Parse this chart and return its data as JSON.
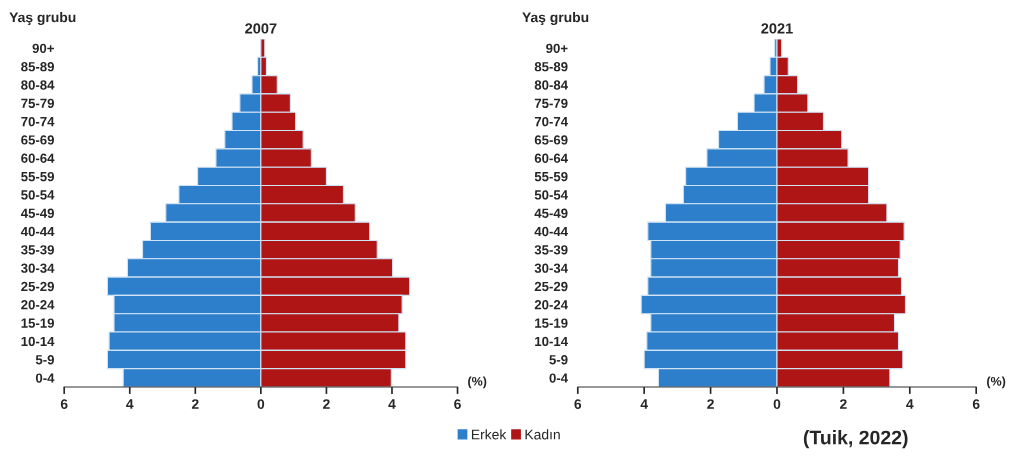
{
  "chart_data": [
    {
      "type": "bar",
      "orientation": "horizontal",
      "stacked": true,
      "title": "2007",
      "ylabel": "Yaş grubu",
      "xlabel": "(%)",
      "categories": [
        "90+",
        "85-89",
        "80-84",
        "75-79",
        "70-74",
        "65-69",
        "60-64",
        "55-59",
        "50-54",
        "45-49",
        "40-44",
        "35-39",
        "30-34",
        "25-29",
        "20-24",
        "15-19",
        "10-14",
        "5-9",
        "0-4"
      ],
      "series": [
        {
          "name": "Erkek",
          "color": "#2e7fcb",
          "values": [
            null,
            -0.1,
            -0.27,
            -0.64,
            -0.88,
            -1.1,
            -1.37,
            -1.93,
            -2.5,
            -2.9,
            -3.37,
            -3.61,
            -4.07,
            -4.68,
            -4.48,
            -4.48,
            -4.63,
            -4.68,
            -4.2
          ]
        },
        {
          "name": "Kadın",
          "color": "#b01515",
          "values": [
            0.12,
            0.17,
            0.5,
            0.9,
            1.06,
            1.29,
            1.54,
            2.0,
            2.52,
            2.88,
            3.32,
            3.55,
            4.02,
            4.54,
            4.31,
            4.21,
            4.42,
            4.42,
            3.98
          ]
        }
      ],
      "xlim": [
        -6,
        6
      ],
      "xticks": [
        {
          "value": -6,
          "label": "6"
        },
        {
          "value": -4,
          "label": "4"
        },
        {
          "value": -2,
          "label": "2"
        },
        0,
        2,
        4,
        6
      ],
      "grid": false,
      "legend": "bottom"
    },
    {
      "type": "bar",
      "orientation": "horizontal",
      "stacked": true,
      "title": "2021",
      "ylabel": "Yaş grubu",
      "xlabel": "(%)",
      "categories": [
        "90+",
        "85-89",
        "80-84",
        "75-79",
        "70-74",
        "65-69",
        "60-64",
        "55-59",
        "50-54",
        "45-49",
        "40-44",
        "35-39",
        "30-34",
        "25-29",
        "20-24",
        "15-19",
        "10-14",
        "5-9",
        "0-4"
      ],
      "series": [
        {
          "color": "#2e7fcb",
          "values": [
            -0.07,
            -0.21,
            -0.39,
            -0.69,
            -1.19,
            -1.76,
            -2.11,
            -2.75,
            -2.82,
            -3.36,
            -3.89,
            -3.8,
            -3.8,
            -3.89,
            -4.09,
            -3.8,
            -3.92,
            -4.0,
            -3.57
          ]
        },
        {
          "color": "#b01515",
          "values": [
            0.14,
            0.34,
            0.62,
            0.93,
            1.4,
            1.95,
            2.14,
            2.76,
            2.76,
            3.31,
            3.83,
            3.71,
            3.66,
            3.75,
            3.87,
            3.54,
            3.66,
            3.79,
            3.4
          ]
        }
      ],
      "xlim": [
        -6,
        6
      ],
      "xticks": [
        {
          "value": -6,
          "label": "6"
        },
        {
          "value": -4,
          "label": "4"
        },
        {
          "value": -2,
          "label": "2"
        },
        0,
        2,
        4,
        6
      ],
      "grid": false,
      "annotations": [
        "(Tuik, 2022)"
      ]
    }
  ]
}
